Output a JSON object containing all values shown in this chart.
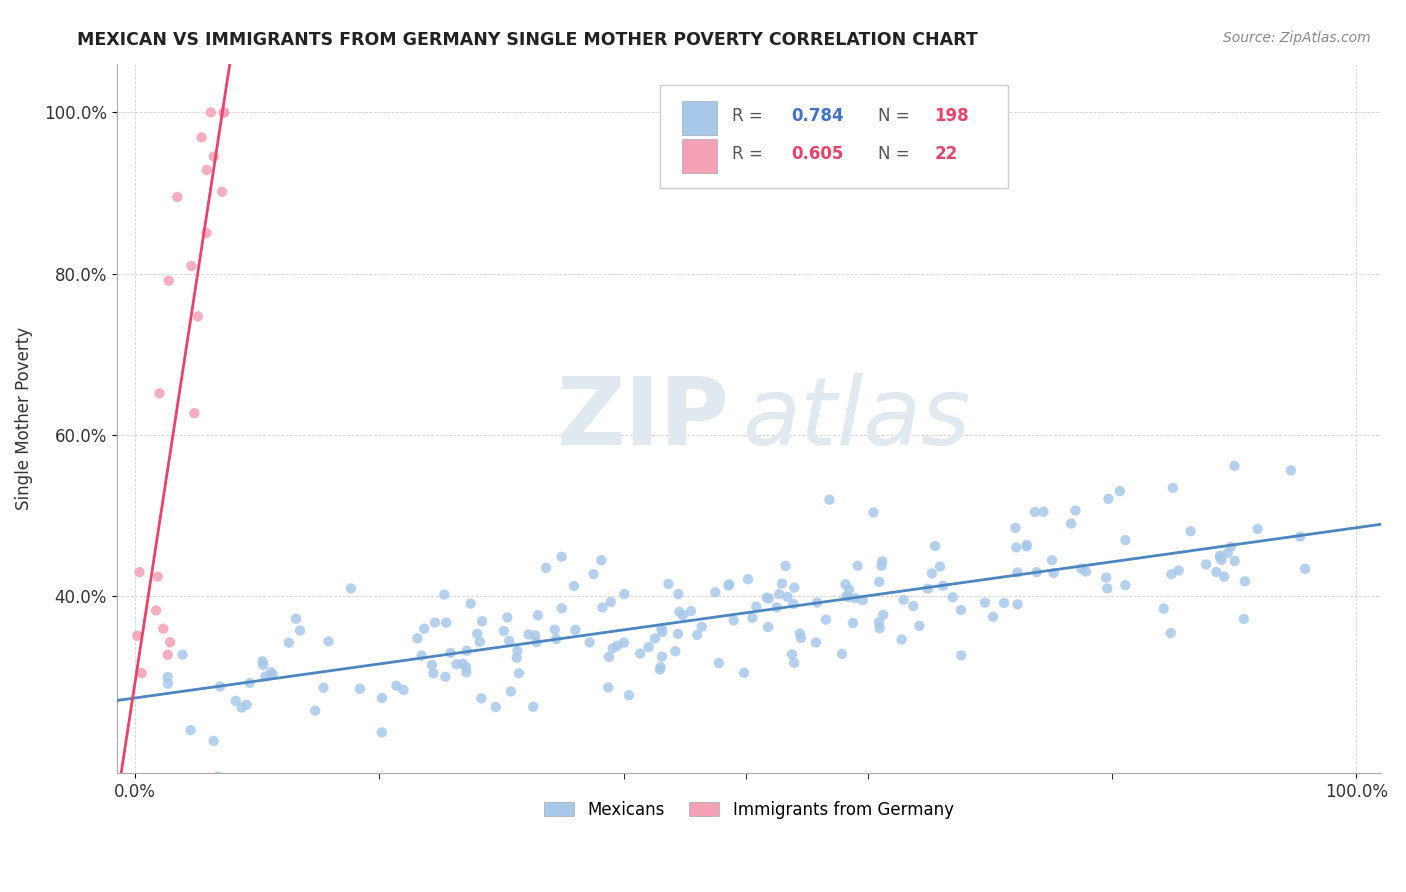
{
  "title": "MEXICAN VS IMMIGRANTS FROM GERMANY SINGLE MOTHER POVERTY CORRELATION CHART",
  "source": "Source: ZipAtlas.com",
  "ylabel": "Single Mother Poverty",
  "watermark_zip": "ZIP",
  "watermark_atlas": "atlas",
  "color_mexican": "#a8c8ea",
  "color_germany": "#f4a0b5",
  "color_line_mexican": "#4d86c0",
  "color_line_germany": "#e8436a",
  "r1_color": "#4472c4",
  "n1_color": "#e8436a",
  "r2_color": "#e8436a",
  "n2_color": "#e8436a",
  "legend_r1": "0.784",
  "legend_n1": "198",
  "legend_r2": "0.605",
  "legend_n2": "22"
}
